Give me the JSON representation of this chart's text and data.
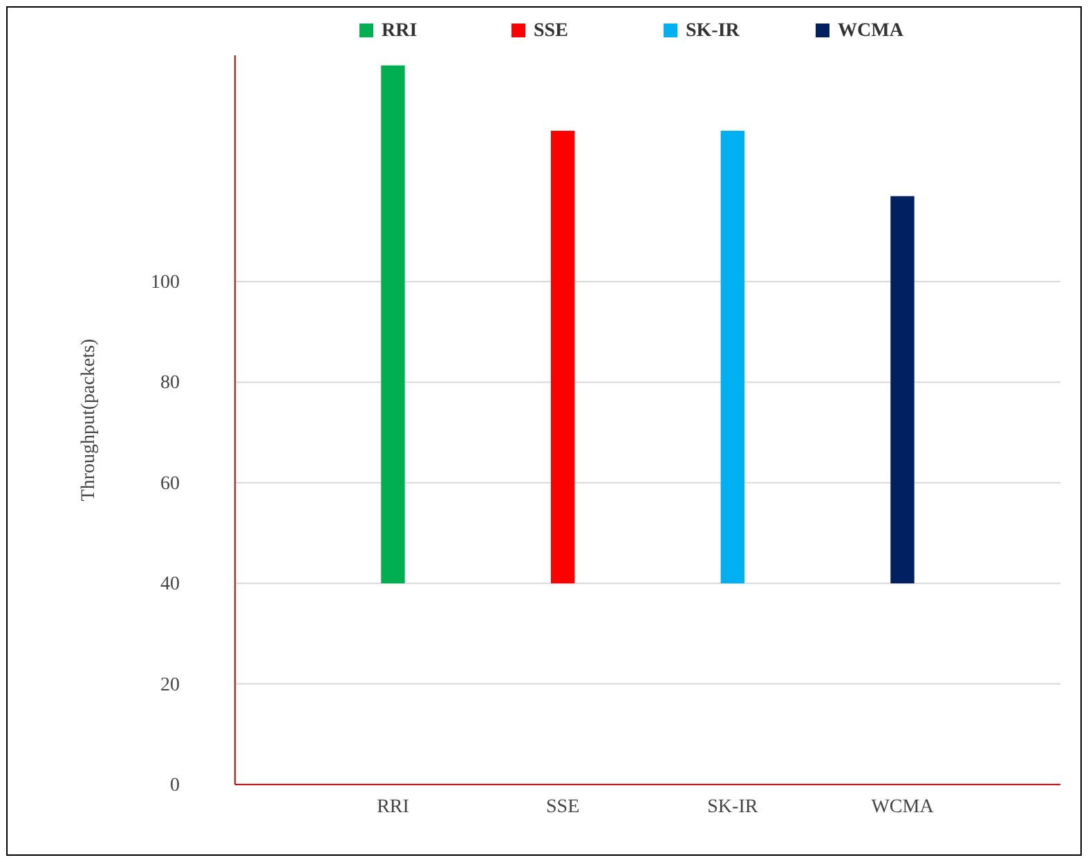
{
  "chart_data": {
    "type": "bar",
    "ylabel": "Throughput(packets)",
    "categories": [
      "RRI",
      "SSE",
      "SK-IR",
      "WCMA"
    ],
    "series": [
      {
        "name": "RRI",
        "color": "#00b050",
        "values": [
          103,
          null,
          null,
          null
        ],
        "base": [
          40,
          null,
          null,
          null
        ]
      },
      {
        "name": "SSE",
        "color": "#ff0000",
        "values": [
          null,
          90,
          null,
          null
        ],
        "base": [
          null,
          40,
          null,
          null
        ]
      },
      {
        "name": "SK-IR",
        "color": "#00b0f0",
        "values": [
          null,
          null,
          90,
          null
        ],
        "base": [
          null,
          null,
          40,
          null
        ]
      },
      {
        "name": "WCMA",
        "color": "#002060",
        "values": [
          null,
          null,
          null,
          77
        ],
        "base": [
          null,
          null,
          null,
          40
        ]
      }
    ],
    "ylim": [
      0,
      145
    ],
    "yticks": [
      0,
      20,
      40,
      60,
      80,
      100
    ],
    "grid": "y",
    "legend": "top"
  }
}
